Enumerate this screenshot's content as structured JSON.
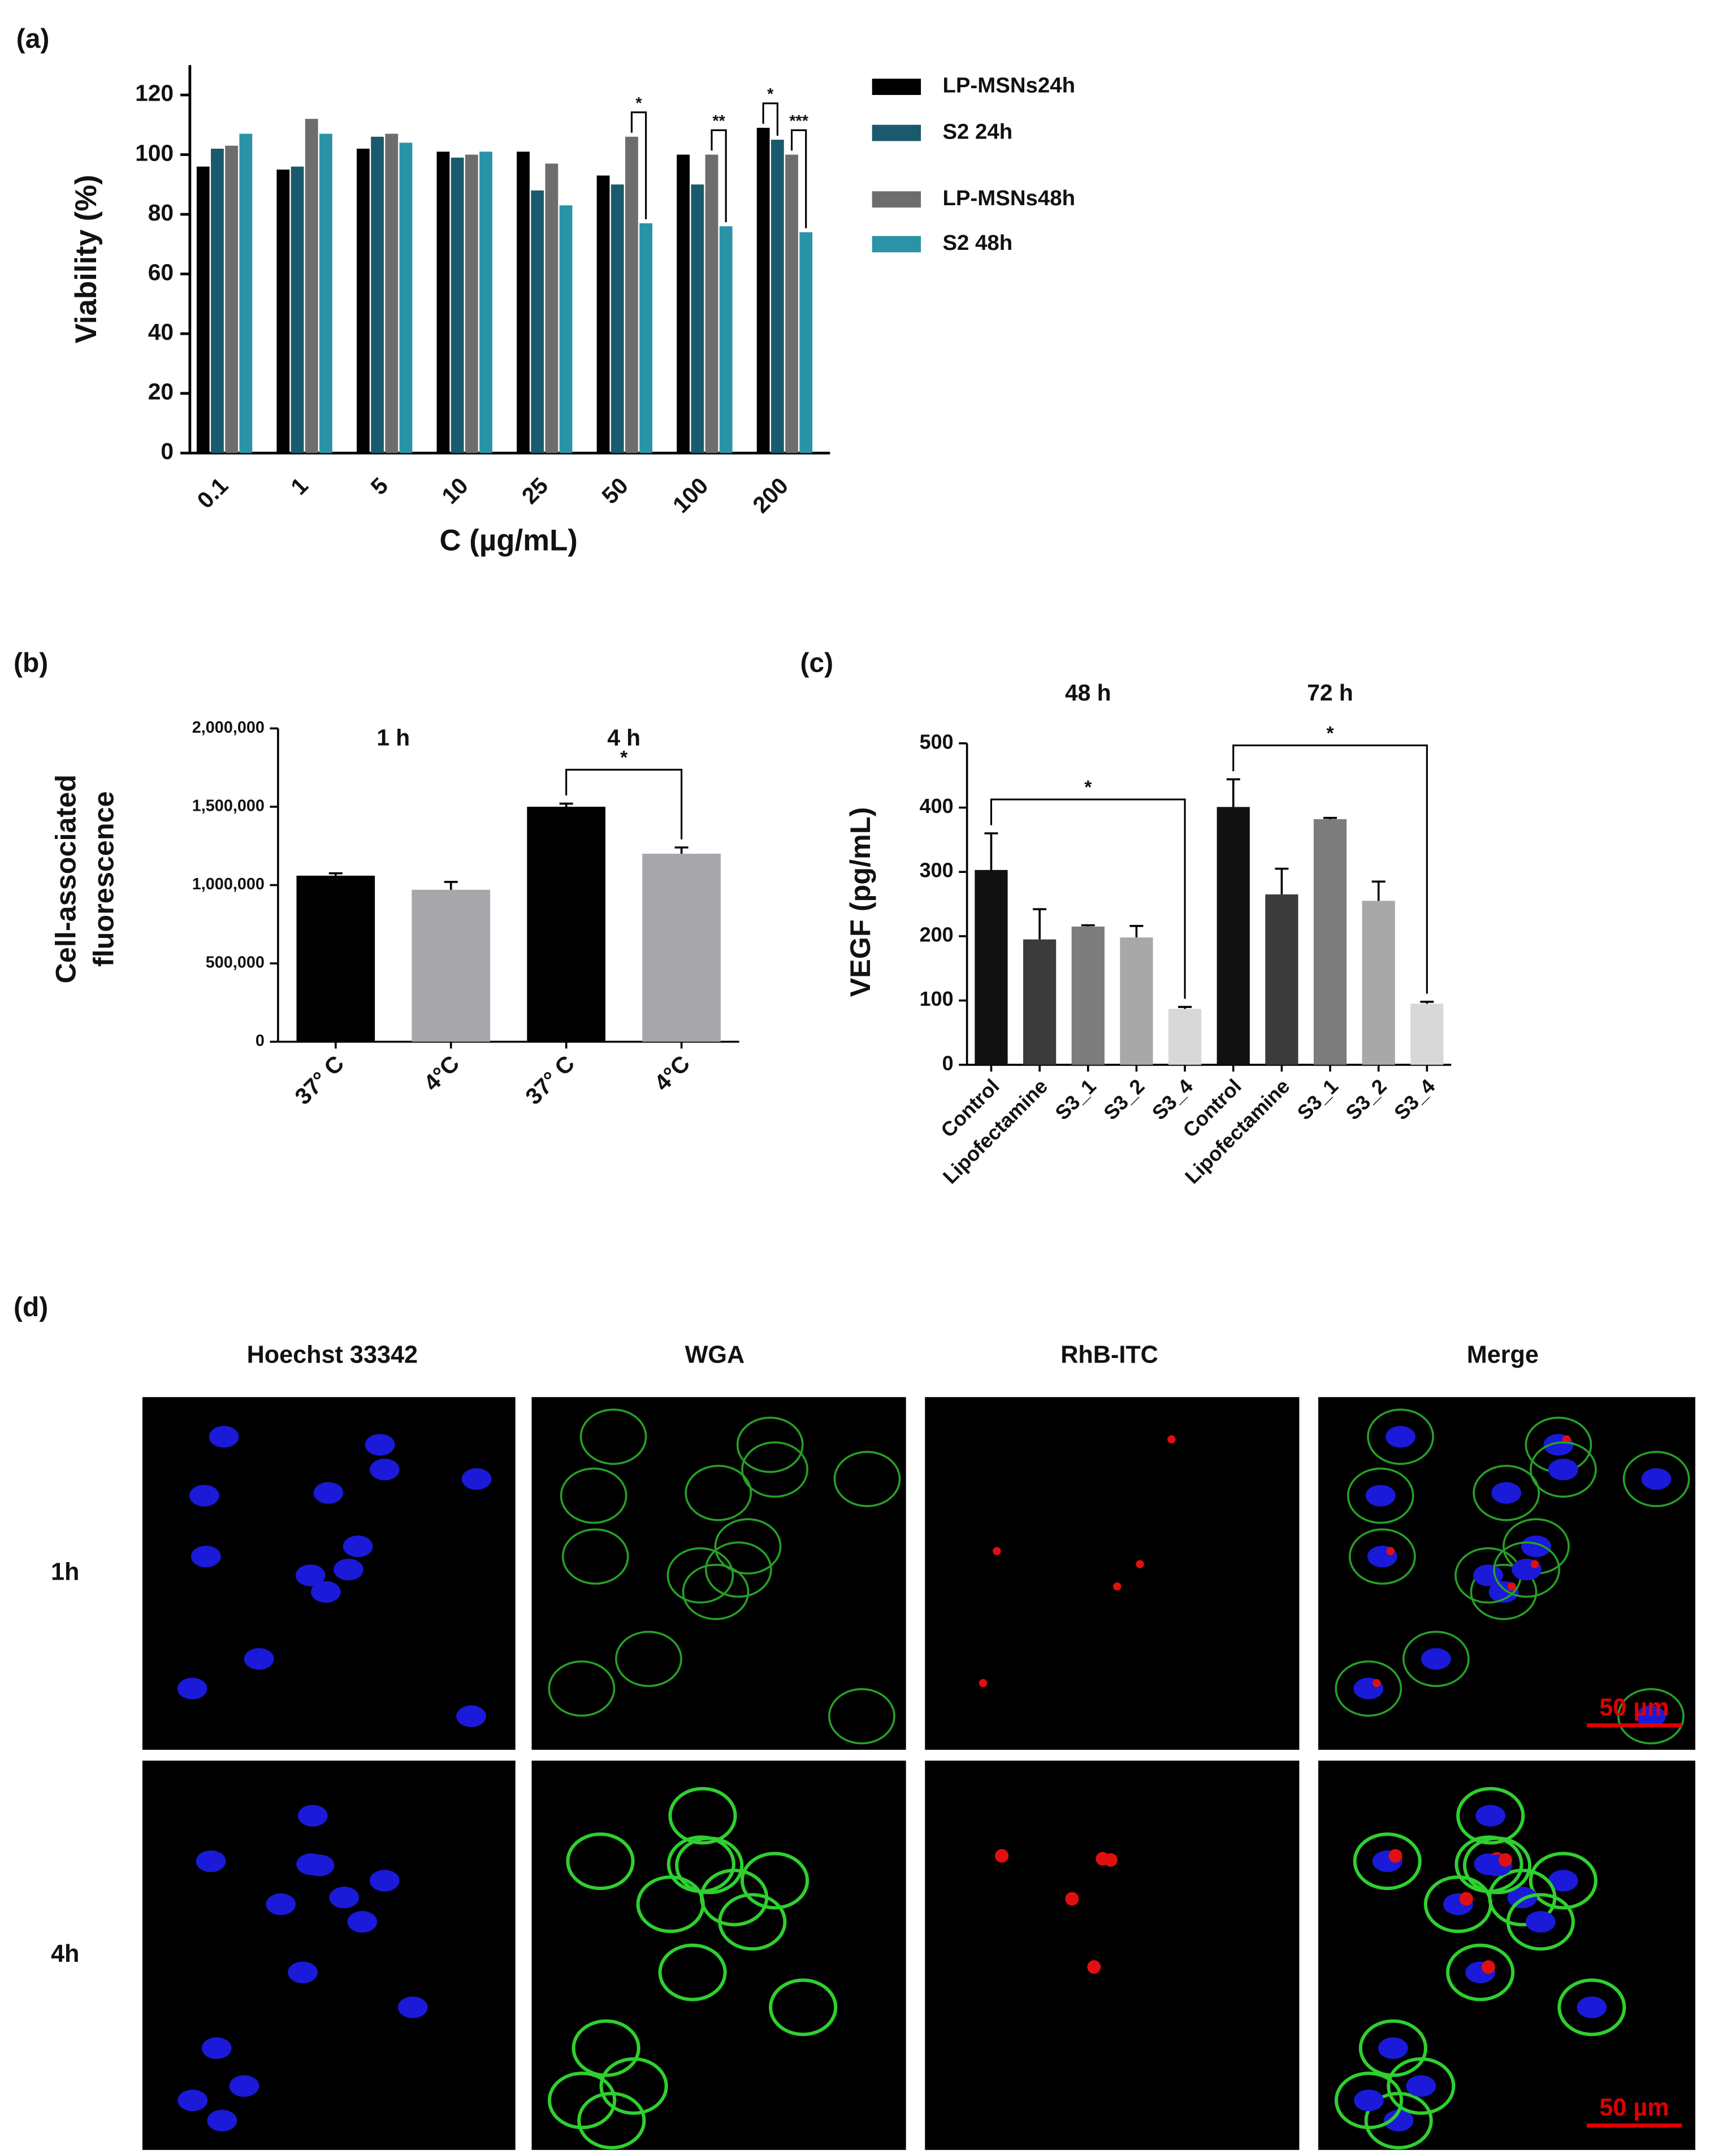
{
  "chart_data": [
    {
      "type": "grouped-bar",
      "panel_label": "(a)",
      "ylabel": "Viability (%)",
      "xlabel": "C (µg/mL)",
      "categories": [
        "0.1",
        "1",
        "5",
        "10",
        "25",
        "50",
        "100",
        "200"
      ],
      "series": [
        {
          "name": "LP-MSNs24h",
          "color": "#000000",
          "values": [
            96,
            95,
            102,
            101,
            101,
            93,
            100,
            109
          ]
        },
        {
          "name": "S2 24h",
          "color": "#1b5a6c",
          "values": [
            102,
            96,
            106,
            99,
            88,
            90,
            90,
            105
          ]
        },
        {
          "name": "LP-MSNs48h",
          "color": "#6d6d6d",
          "values": [
            103,
            112,
            107,
            100,
            97,
            106,
            100,
            100
          ]
        },
        {
          "name": "S2 48h",
          "color": "#2a93a8",
          "values": [
            107,
            107,
            104,
            101,
            83,
            77,
            76,
            74
          ]
        }
      ],
      "ylim": [
        0,
        130
      ],
      "yticks": [
        0,
        20,
        40,
        60,
        80,
        100,
        120
      ],
      "annotations": [
        {
          "text": "*",
          "category": "50",
          "series": [
            "LP-MSNs48h",
            "S2 48h"
          ]
        },
        {
          "text": "**",
          "category": "100",
          "series": [
            "LP-MSNs48h",
            "S2 48h"
          ]
        },
        {
          "text": "*",
          "category": "200",
          "series": [
            "LP-MSNs24h",
            "S2 24h"
          ]
        },
        {
          "text": "***",
          "category": "200",
          "series": [
            "LP-MSNs48h",
            "S2 48h"
          ]
        }
      ]
    },
    {
      "type": "bar",
      "panel_label": "(b)",
      "ylabel": [
        "Cell-associated",
        "fluorescence"
      ],
      "groups": [
        {
          "label": "1 h"
        },
        {
          "label": "4 h",
          "significance": "*"
        }
      ],
      "categories": [
        "37° C",
        "4°C",
        "37° C",
        "4°C"
      ],
      "values": [
        1060000,
        970000,
        1500000,
        1200000
      ],
      "errors": [
        15000,
        50000,
        20000,
        40000
      ],
      "colors": [
        "#000000",
        "#a7a7ab",
        "#000000",
        "#a7a7ab"
      ],
      "ylim": [
        0,
        2000000
      ],
      "yticks": [
        0,
        {
          "value": 500000,
          "label": "500,000"
        },
        {
          "value": 1000000,
          "label": "1,000,000"
        },
        {
          "value": 1500000,
          "label": "1,500,000"
        },
        {
          "value": 2000000,
          "label": "2,000,000"
        }
      ]
    },
    {
      "type": "bar",
      "panel_label": "(c)",
      "ylabel": "VEGF (pg/mL)",
      "groups": [
        {
          "label": "48 h",
          "significance": "*"
        },
        {
          "label": "72 h",
          "significance": "*"
        }
      ],
      "categories": [
        "Control",
        "Lipofectamine",
        "S3_1",
        "S3_2",
        "S3_4",
        "Control",
        "Lipofectamine",
        "S3_1",
        "S3_2",
        "S3_4"
      ],
      "values": [
        303,
        195,
        215,
        198,
        87,
        401,
        265,
        382,
        255,
        95
      ],
      "errors": [
        57,
        47,
        2,
        18,
        3,
        43,
        40,
        2,
        30,
        3
      ],
      "colors": [
        "#111111",
        "#3b3b3b",
        "#7c7c7c",
        "#a8a8a8",
        "#d8d8d8",
        "#111111",
        "#3b3b3b",
        "#7c7c7c",
        "#a8a8a8",
        "#d8d8d8"
      ],
      "ylim": [
        0,
        500
      ],
      "yticks": [
        0,
        100,
        200,
        300,
        400,
        500
      ]
    }
  ],
  "microscopy": {
    "panel_label": "(d)",
    "columns": [
      "Hoechst 33342",
      "WGA",
      "RhB-ITC",
      "Merge"
    ],
    "rows": [
      "1h",
      "4h"
    ],
    "scale_bars": [
      "50 µm",
      "50 µm"
    ]
  }
}
